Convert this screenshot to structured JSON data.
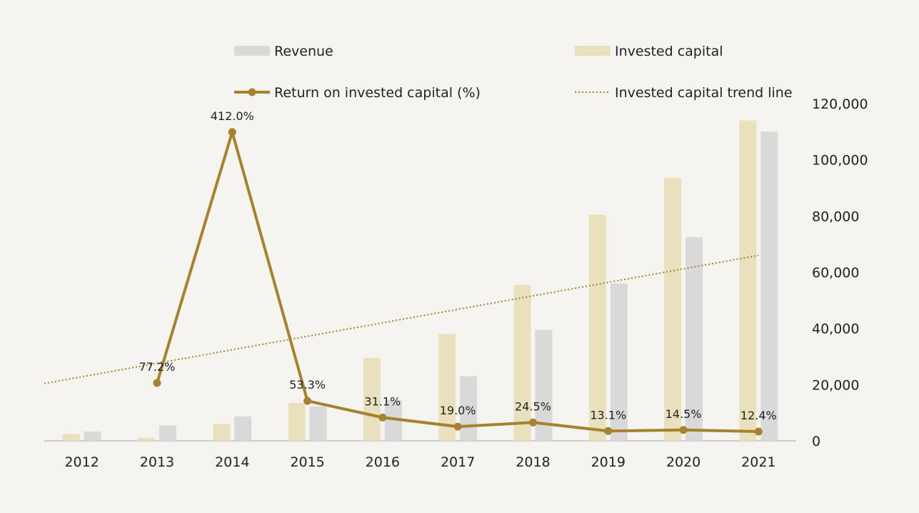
{
  "chart_data": {
    "type": "bar",
    "categories": [
      "2012",
      "2013",
      "2014",
      "2015",
      "2016",
      "2017",
      "2018",
      "2019",
      "2020",
      "2021"
    ],
    "series": [
      {
        "name": "Invested capital",
        "kind": "bar",
        "color": "#e9e1bd",
        "values": [
          2400,
          1100,
          6000,
          13500,
          29500,
          38000,
          55500,
          80500,
          93500,
          114000
        ]
      },
      {
        "name": "Revenue",
        "kind": "bar",
        "color": "#d9d9d9",
        "values": [
          3300,
          5500,
          8700,
          12300,
          14500,
          23000,
          39500,
          56000,
          72500,
          110000
        ]
      },
      {
        "name": "Return on invested capital (%)",
        "kind": "line",
        "color": "#a6822e",
        "values": [
          null,
          77.2,
          412.0,
          53.3,
          31.1,
          19.0,
          24.5,
          13.1,
          14.5,
          12.4
        ],
        "labels": [
          "",
          "77.2%",
          "412.0%",
          "53.3%",
          "31.1%",
          "19.0%",
          "24.5%",
          "13.1%",
          "14.5%",
          "12.4%"
        ]
      },
      {
        "name": "Invested capital trend line",
        "kind": "trendline",
        "color": "#a6822e",
        "values": [
          22800,
          27600,
          32400,
          37200,
          42000,
          46800,
          51600,
          56400,
          61200,
          66000
        ]
      }
    ],
    "y_axis": {
      "side": "right",
      "range": [
        0,
        120000
      ],
      "ticks": [
        0,
        20000,
        40000,
        60000,
        80000,
        100000,
        120000
      ],
      "tick_labels": [
        "0",
        "20,000",
        "40,000",
        "60,000",
        "80,000",
        "100,000",
        "120,000"
      ]
    },
    "secondary_axis": {
      "range": [
        0,
        450
      ],
      "shown": false
    },
    "grid": false,
    "legend_position": "top"
  },
  "legend": {
    "revenue": "Revenue",
    "invested_capital": "Invested capital",
    "roic": "Return on invested capital (%)",
    "trend": "Invested capital trend line"
  }
}
